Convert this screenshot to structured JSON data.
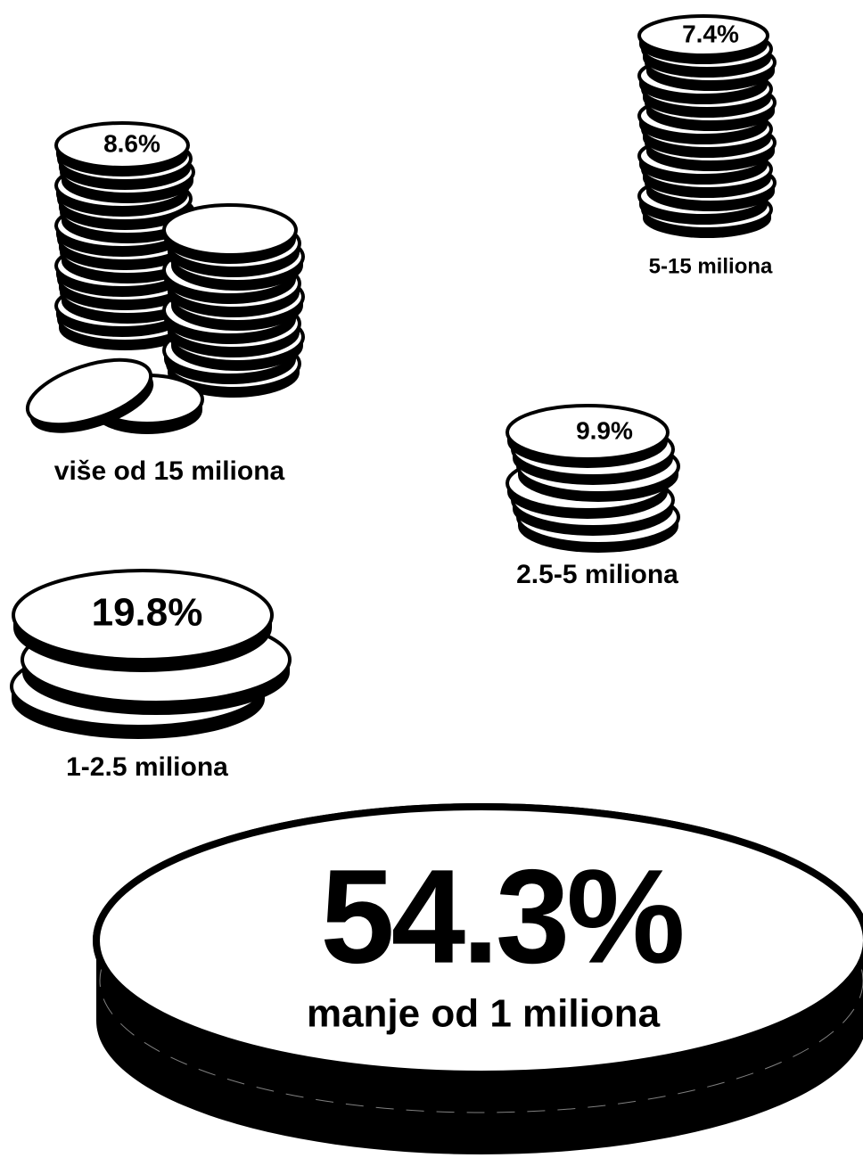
{
  "items": [
    {
      "value": "8.6%",
      "label": "više od 15 miliona"
    },
    {
      "value": "7.4%",
      "label": "5-15 miliona"
    },
    {
      "value": "9.9%",
      "label": "2.5-5 miliona"
    },
    {
      "value": "19.8%",
      "label": "1-2.5 miliona"
    },
    {
      "value": "54.3%",
      "label": "manje od 1 miliona"
    }
  ]
}
